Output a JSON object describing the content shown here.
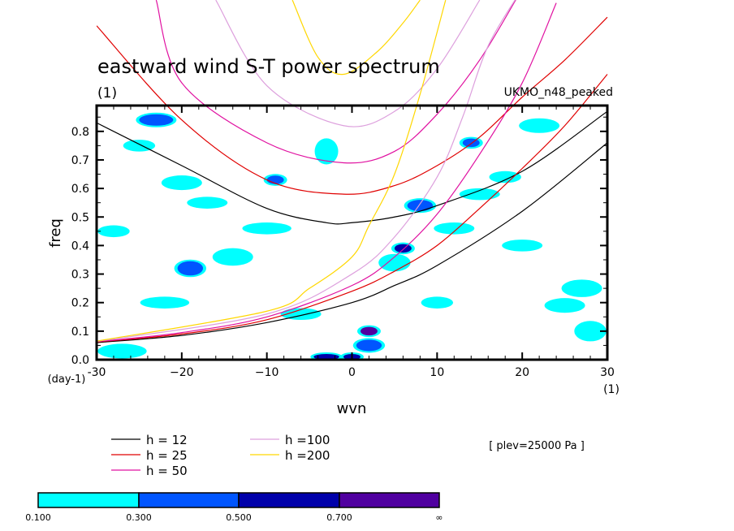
{
  "chart_data": {
    "type": "contour",
    "title": "eastward wind S-T power spectrum",
    "title_units": "(1)",
    "dataset_label": "UKMO_n48_peaked",
    "xlabel": "wvn",
    "x_units": "(1)",
    "ylabel": "freq",
    "y_units": "(day-1)",
    "xlim": [
      -30,
      30
    ],
    "ylim": [
      0,
      0.89
    ],
    "x_ticks": [
      -30,
      -20,
      -10,
      0,
      10,
      20,
      30
    ],
    "x_tick_labels": [
      "-30",
      "−20",
      "−10",
      "0",
      "10",
      "20",
      "30"
    ],
    "y_ticks": [
      0,
      0.1,
      0.2,
      0.3,
      0.4,
      0.5,
      0.6,
      0.7,
      0.8
    ],
    "y_tick_labels": [
      "0.0",
      "0.1",
      "0.2",
      "0.3",
      "0.4",
      "0.5",
      "0.6",
      "0.7",
      "0.8"
    ],
    "annotation": "[ plev=25000 Pa ]",
    "legend": [
      {
        "label": "h = 12",
        "color": "#000000"
      },
      {
        "label": "h = 25",
        "color": "#e00000"
      },
      {
        "label": "h = 50",
        "color": "#e010a0"
      },
      {
        "label": "h =100",
        "color": "#dda0dd"
      },
      {
        "label": "h =200",
        "color": "#ffd700"
      }
    ],
    "series": [
      {
        "name": "h = 12",
        "color": "#000000",
        "branches": [
          {
            "x": [
              -30,
              -20,
              -10,
              0,
              5,
              10,
              20,
              30
            ],
            "y": [
              0.06,
              0.085,
              0.13,
              0.2,
              0.26,
              0.33,
              0.52,
              0.76
            ]
          },
          {
            "x": [
              -30,
              -20,
              -10,
              -3,
              0,
              5,
              10,
              20,
              30
            ],
            "y": [
              0.83,
              0.68,
              0.53,
              0.48,
              0.48,
              0.5,
              0.54,
              0.66,
              0.87
            ]
          }
        ]
      },
      {
        "name": "h = 25",
        "color": "#e00000",
        "branches": [
          {
            "x": [
              -30,
              -20,
              -10,
              0,
              5,
              10,
              15,
              20,
              25,
              30
            ],
            "y": [
              0.062,
              0.09,
              0.14,
              0.24,
              0.31,
              0.4,
              0.53,
              0.67,
              0.82,
              1.0
            ]
          },
          {
            "x": [
              -30,
              -20,
              -10,
              -1,
              5,
              10,
              15,
              20,
              25,
              30
            ],
            "y": [
              1.17,
              0.84,
              0.63,
              0.58,
              0.61,
              0.68,
              0.78,
              0.92,
              1.05,
              1.2
            ]
          }
        ]
      },
      {
        "name": "h = 50",
        "color": "#e010a0",
        "branches": [
          {
            "x": [
              -30,
              -20,
              -10,
              0,
              5,
              10,
              15,
              20,
              24
            ],
            "y": [
              0.063,
              0.095,
              0.15,
              0.26,
              0.36,
              0.51,
              0.72,
              0.97,
              1.25
            ]
          },
          {
            "x": [
              -23,
              -20,
              -10,
              -1,
              5,
              10,
              15,
              20
            ],
            "y": [
              1.26,
              0.97,
              0.76,
              0.69,
              0.73,
              0.86,
              1.05,
              1.3
            ]
          }
        ]
      },
      {
        "name": "h =100",
        "color": "#dda0dd",
        "branches": [
          {
            "x": [
              -30,
              -10,
              0,
              5,
              10,
              13,
              16,
              20
            ],
            "y": [
              0.064,
              0.16,
              0.3,
              0.43,
              0.64,
              0.85,
              1.1,
              1.3
            ]
          },
          {
            "x": [
              -16,
              -10,
              -1,
              5,
              10,
              15
            ],
            "y": [
              1.26,
              0.96,
              0.82,
              0.87,
              1.02,
              1.26
            ]
          }
        ]
      },
      {
        "name": "h =200",
        "color": "#ffd700",
        "branches": [
          {
            "x": [
              -30,
              -10,
              -5,
              0,
              2,
              5,
              8,
              11
            ],
            "y": [
              0.065,
              0.17,
              0.25,
              0.36,
              0.47,
              0.65,
              0.93,
              1.26
            ]
          },
          {
            "x": [
              -7,
              -4,
              -1,
              3,
              6,
              8
            ],
            "y": [
              1.26,
              1.06,
              1.0,
              1.08,
              1.18,
              1.26
            ]
          }
        ]
      }
    ],
    "contour_levels": [
      0.1,
      0.3,
      0.5,
      0.7
    ],
    "colorbar": {
      "colors": [
        "#00ffff",
        "#0055ff",
        "#0000aa",
        "#5000a0"
      ],
      "labels": [
        "0.100",
        "0.300",
        "0.500",
        "0.700",
        "∞"
      ]
    },
    "patches": [
      {
        "x": -23,
        "y": 0.84,
        "w": 4,
        "h": 0.04,
        "level": 1
      },
      {
        "x": -25,
        "y": 0.75,
        "w": 3,
        "h": 0.03,
        "level": 0
      },
      {
        "x": -20,
        "y": 0.62,
        "w": 4,
        "h": 0.04,
        "level": 0
      },
      {
        "x": -19,
        "y": 0.32,
        "w": 3,
        "h": 0.05,
        "level": 1
      },
      {
        "x": -27,
        "y": 0.03,
        "w": 5,
        "h": 0.04,
        "level": 0
      },
      {
        "x": -14,
        "y": 0.36,
        "w": 4,
        "h": 0.05,
        "level": 0
      },
      {
        "x": -9,
        "y": 0.63,
        "w": 2,
        "h": 0.03,
        "level": 1
      },
      {
        "x": -3,
        "y": 0.73,
        "w": 2,
        "h": 0.08,
        "level": 0
      },
      {
        "x": -3,
        "y": 0.01,
        "w": 3,
        "h": 0.02,
        "level": 2
      },
      {
        "x": 0,
        "y": 0.01,
        "w": 2,
        "h": 0.02,
        "level": 2
      },
      {
        "x": 2,
        "y": 0.1,
        "w": 2,
        "h": 0.03,
        "level": 3
      },
      {
        "x": 2,
        "y": 0.05,
        "w": 3,
        "h": 0.04,
        "level": 1
      },
      {
        "x": 6,
        "y": 0.39,
        "w": 2,
        "h": 0.03,
        "level": 2
      },
      {
        "x": 8,
        "y": 0.54,
        "w": 3,
        "h": 0.04,
        "level": 1
      },
      {
        "x": 14,
        "y": 0.76,
        "w": 2,
        "h": 0.03,
        "level": 1
      },
      {
        "x": 18,
        "y": 0.64,
        "w": 3,
        "h": 0.03,
        "level": 0
      },
      {
        "x": 22,
        "y": 0.82,
        "w": 4,
        "h": 0.04,
        "level": 0
      },
      {
        "x": 27,
        "y": 0.25,
        "w": 4,
        "h": 0.05,
        "level": 0
      },
      {
        "x": 28,
        "y": 0.1,
        "w": 3,
        "h": 0.06,
        "level": 0
      },
      {
        "x": 25,
        "y": 0.19,
        "w": 4,
        "h": 0.04,
        "level": 0
      },
      {
        "x": 12,
        "y": 0.46,
        "w": 4,
        "h": 0.03,
        "level": 0
      },
      {
        "x": 5,
        "y": 0.34,
        "w": 3,
        "h": 0.05,
        "level": 0
      },
      {
        "x": -10,
        "y": 0.46,
        "w": 5,
        "h": 0.03,
        "level": 0
      },
      {
        "x": -22,
        "y": 0.2,
        "w": 5,
        "h": 0.03,
        "level": 0
      },
      {
        "x": -6,
        "y": 0.16,
        "w": 4,
        "h": 0.03,
        "level": 0
      },
      {
        "x": 15,
        "y": 0.58,
        "w": 4,
        "h": 0.03,
        "level": 0
      },
      {
        "x": 20,
        "y": 0.4,
        "w": 4,
        "h": 0.03,
        "level": 0
      },
      {
        "x": -17,
        "y": 0.55,
        "w": 4,
        "h": 0.03,
        "level": 0
      },
      {
        "x": -28,
        "y": 0.45,
        "w": 3,
        "h": 0.03,
        "level": 0
      },
      {
        "x": 10,
        "y": 0.2,
        "w": 3,
        "h": 0.03,
        "level": 0
      }
    ]
  }
}
